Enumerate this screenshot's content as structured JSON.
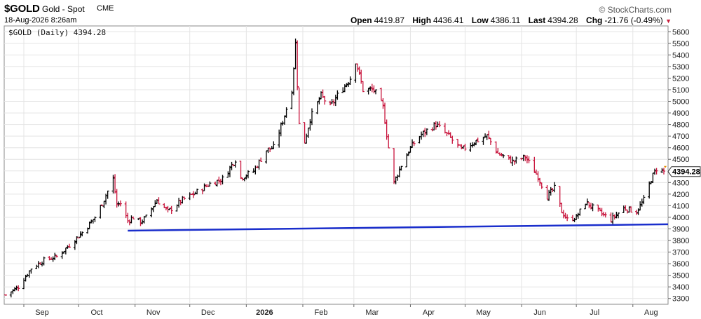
{
  "header": {
    "symbol": "$GOLD",
    "description": "Gold - Spot",
    "exchange": "CME",
    "brand": "© StockCharts.com",
    "datetime": "18-Aug-2026 8:26am",
    "open_label": "Open",
    "open_value": "4419.87",
    "high_label": "High",
    "high_value": "4436.41",
    "low_label": "Low",
    "low_value": "4386.11",
    "last_label": "Last",
    "last_value": "4394.28",
    "chg_label": "Chg",
    "chg_value": "-21.76 (-0.49%)",
    "chg_icon": "triangle-down-icon"
  },
  "chart_data": {
    "type": "ohlc",
    "inset_label": "$GOLD (Daily) 4394.28",
    "last_price_label": "4394.28",
    "ylim": [
      3250,
      5650
    ],
    "y_ticks": [
      3300,
      3400,
      3500,
      3600,
      3700,
      3800,
      3900,
      4000,
      4100,
      4200,
      4300,
      4400,
      4500,
      4600,
      4700,
      4800,
      4900,
      5000,
      5100,
      5200,
      5300,
      5400,
      5500,
      5600
    ],
    "x_start": "2025-08-22",
    "x_end": "2026-08-18",
    "x_ticks": [
      {
        "label": "Sep",
        "date": "2025-09-01",
        "bold": false
      },
      {
        "label": "Oct",
        "date": "2025-10-01",
        "bold": false
      },
      {
        "label": "Nov",
        "date": "2025-11-01",
        "bold": false
      },
      {
        "label": "Dec",
        "date": "2025-12-01",
        "bold": false
      },
      {
        "label": "2026",
        "date": "2026-01-01",
        "bold": true
      },
      {
        "label": "Feb",
        "date": "2026-02-01",
        "bold": false
      },
      {
        "label": "Mar",
        "date": "2026-03-01",
        "bold": false
      },
      {
        "label": "Apr",
        "date": "2026-04-01",
        "bold": false
      },
      {
        "label": "May",
        "date": "2026-05-01",
        "bold": false
      },
      {
        "label": "Jun",
        "date": "2026-06-01",
        "bold": false
      },
      {
        "label": "Jul",
        "date": "2026-07-01",
        "bold": false
      },
      {
        "label": "Aug",
        "date": "2026-08-01",
        "bold": false
      }
    ],
    "price_path": [
      [
        "2025-08-22",
        3330
      ],
      [
        "2025-08-29",
        3400
      ],
      [
        "2025-09-05",
        3560
      ],
      [
        "2025-09-12",
        3630
      ],
      [
        "2025-09-19",
        3660
      ],
      [
        "2025-09-26",
        3760
      ],
      [
        "2025-10-03",
        3870
      ],
      [
        "2025-10-10",
        4000
      ],
      [
        "2025-10-14",
        4120
      ],
      [
        "2025-10-20",
        4330
      ],
      [
        "2025-10-22",
        4110
      ],
      [
        "2025-10-24",
        4120
      ],
      [
        "2025-10-28",
        3970
      ],
      [
        "2025-10-31",
        4000
      ],
      [
        "2025-11-04",
        3960
      ],
      [
        "2025-11-07",
        4000
      ],
      [
        "2025-11-13",
        4150
      ],
      [
        "2025-11-19",
        4050
      ],
      [
        "2025-11-27",
        4150
      ],
      [
        "2025-12-03",
        4200
      ],
      [
        "2025-12-12",
        4290
      ],
      [
        "2025-12-19",
        4330
      ],
      [
        "2025-12-26",
        4500
      ],
      [
        "2025-12-29",
        4340
      ],
      [
        "2026-01-05",
        4400
      ],
      [
        "2026-01-12",
        4580
      ],
      [
        "2026-01-16",
        4600
      ],
      [
        "2026-01-21",
        4830
      ],
      [
        "2026-01-26",
        5100
      ],
      [
        "2026-01-28",
        5500
      ],
      [
        "2026-01-30",
        4800
      ],
      [
        "2026-02-02",
        4650
      ],
      [
        "2026-02-05",
        4850
      ],
      [
        "2026-02-11",
        5050
      ],
      [
        "2026-02-16",
        4950
      ],
      [
        "2026-02-20",
        5050
      ],
      [
        "2026-02-27",
        5200
      ],
      [
        "2026-03-02",
        5350
      ],
      [
        "2026-03-06",
        5100
      ],
      [
        "2026-03-12",
        5100
      ],
      [
        "2026-03-17",
        4950
      ],
      [
        "2026-03-20",
        4600
      ],
      [
        "2026-03-23",
        4300
      ],
      [
        "2026-03-27",
        4450
      ],
      [
        "2026-04-01",
        4600
      ],
      [
        "2026-04-06",
        4700
      ],
      [
        "2026-04-10",
        4750
      ],
      [
        "2026-04-15",
        4800
      ],
      [
        "2026-04-22",
        4700
      ],
      [
        "2026-04-29",
        4580
      ],
      [
        "2026-05-06",
        4650
      ],
      [
        "2026-05-13",
        4700
      ],
      [
        "2026-05-19",
        4550
      ],
      [
        "2026-05-27",
        4480
      ],
      [
        "2026-06-03",
        4520
      ],
      [
        "2026-06-10",
        4350
      ],
      [
        "2026-06-15",
        4180
      ],
      [
        "2026-06-19",
        4250
      ],
      [
        "2026-06-23",
        4050
      ],
      [
        "2026-06-26",
        3980
      ],
      [
        "2026-07-01",
        4000
      ],
      [
        "2026-07-06",
        4130
      ],
      [
        "2026-07-13",
        4050
      ],
      [
        "2026-07-20",
        3980
      ],
      [
        "2026-07-27",
        4080
      ],
      [
        "2026-08-03",
        4050
      ],
      [
        "2026-08-07",
        4150
      ],
      [
        "2026-08-11",
        4330
      ],
      [
        "2026-08-14",
        4420
      ],
      [
        "2026-08-18",
        4394
      ]
    ],
    "trendline": {
      "color": "#1a2ecc",
      "from": [
        "2025-10-28",
        3885
      ],
      "to": [
        "2026-08-18",
        3940
      ]
    },
    "up_color": "#000000",
    "down_color": "#c8143c",
    "grid": true,
    "y_axis_side": "right"
  }
}
